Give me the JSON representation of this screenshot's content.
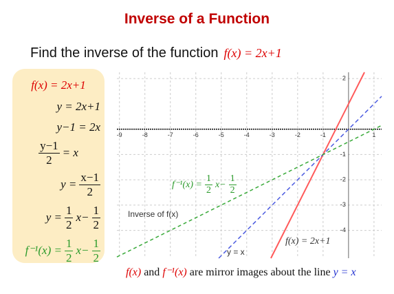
{
  "title": "Inverse of a Function",
  "prompt": [
    "Find the inverse of the function",
    "f(x) = 2x+1"
  ],
  "steps": [
    [
      "f(x) = 2x+1"
    ],
    [
      "y = 2x+1"
    ],
    [
      "y−1 = 2x"
    ],
    [
      {
        "num": "y−1",
        "den": "2"
      },
      "= x"
    ],
    [
      "y =",
      {
        "num": "x−1",
        "den": "2"
      }
    ],
    [
      "y =",
      {
        "num": "1",
        "den": "2"
      },
      "x−",
      {
        "num": "1",
        "den": "2"
      }
    ],
    [
      "f⁻¹(x) =",
      {
        "num": "1",
        "den": "2"
      },
      "x−",
      {
        "num": "1",
        "den": "2"
      }
    ]
  ],
  "caption": [
    "f(x)",
    "and",
    "f⁻¹(x)",
    "are mirror images about the line",
    "y = x"
  ],
  "chart_data": {
    "type": "line",
    "xlim": [
      -9.1,
      1.3
    ],
    "ylim": [
      -5.1,
      2.25
    ],
    "xticks": [
      -9,
      -8,
      -7,
      -6,
      -5,
      -4,
      -3,
      -2,
      -1,
      1
    ],
    "yticks": [
      -4,
      -3,
      -2,
      -1,
      2
    ],
    "grid": true,
    "series": [
      {
        "name": "f(x) = 2x+1",
        "color": "#ff5a5a",
        "x": [
          -3.05,
          0.625
        ],
        "values": [
          -5.1,
          2.25
        ]
      },
      {
        "name": "y = x",
        "color": "#4a5ae0",
        "x": [
          -5.1,
          1.3
        ],
        "values": [
          -5.1,
          1.3
        ]
      },
      {
        "name": "Inverse of f(x)",
        "color": "#3aaa3a",
        "x": [
          -9.1,
          1.3
        ],
        "values": [
          -5.05,
          0.15
        ]
      }
    ],
    "annotation": [
      "f⁻¹(x) =",
      {
        "num": "1",
        "den": "2"
      },
      "x−",
      {
        "num": "1",
        "den": "2"
      }
    ]
  }
}
